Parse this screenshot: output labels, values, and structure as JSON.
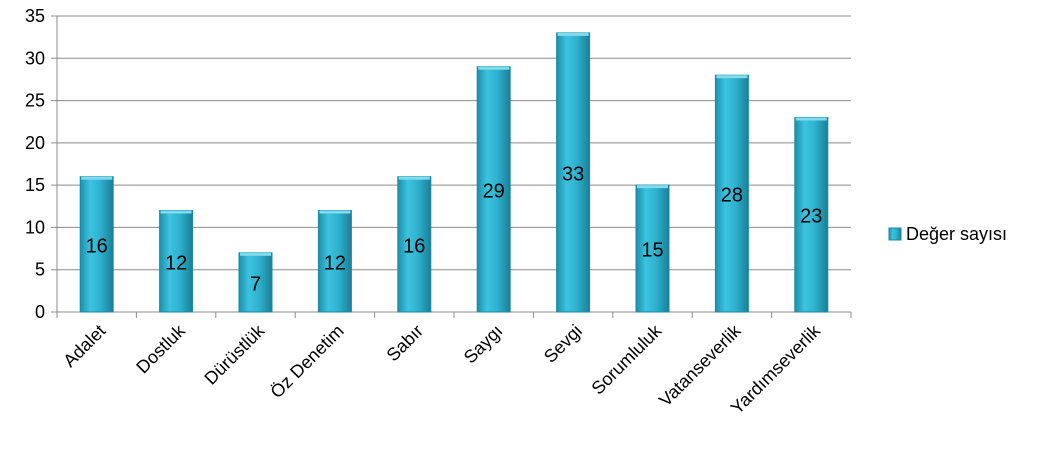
{
  "chart_data": {
    "type": "bar",
    "categories": [
      "Adalet",
      "Dostluk",
      "Dürüstlük",
      "Öz Denetim",
      "Sabır",
      "Saygı",
      "Sevgi",
      "Sorumluluk",
      "Vatanseverlik",
      "Yardımseverlik"
    ],
    "series": [
      {
        "name": "Değer sayısı",
        "values": [
          16,
          12,
          7,
          12,
          16,
          29,
          33,
          15,
          28,
          23
        ],
        "color": "#31b6d4"
      }
    ],
    "ylim": [
      0,
      35
    ],
    "yticks": [
      0,
      5,
      10,
      15,
      20,
      25,
      30,
      35
    ],
    "grid": true,
    "legend_position": "right"
  }
}
